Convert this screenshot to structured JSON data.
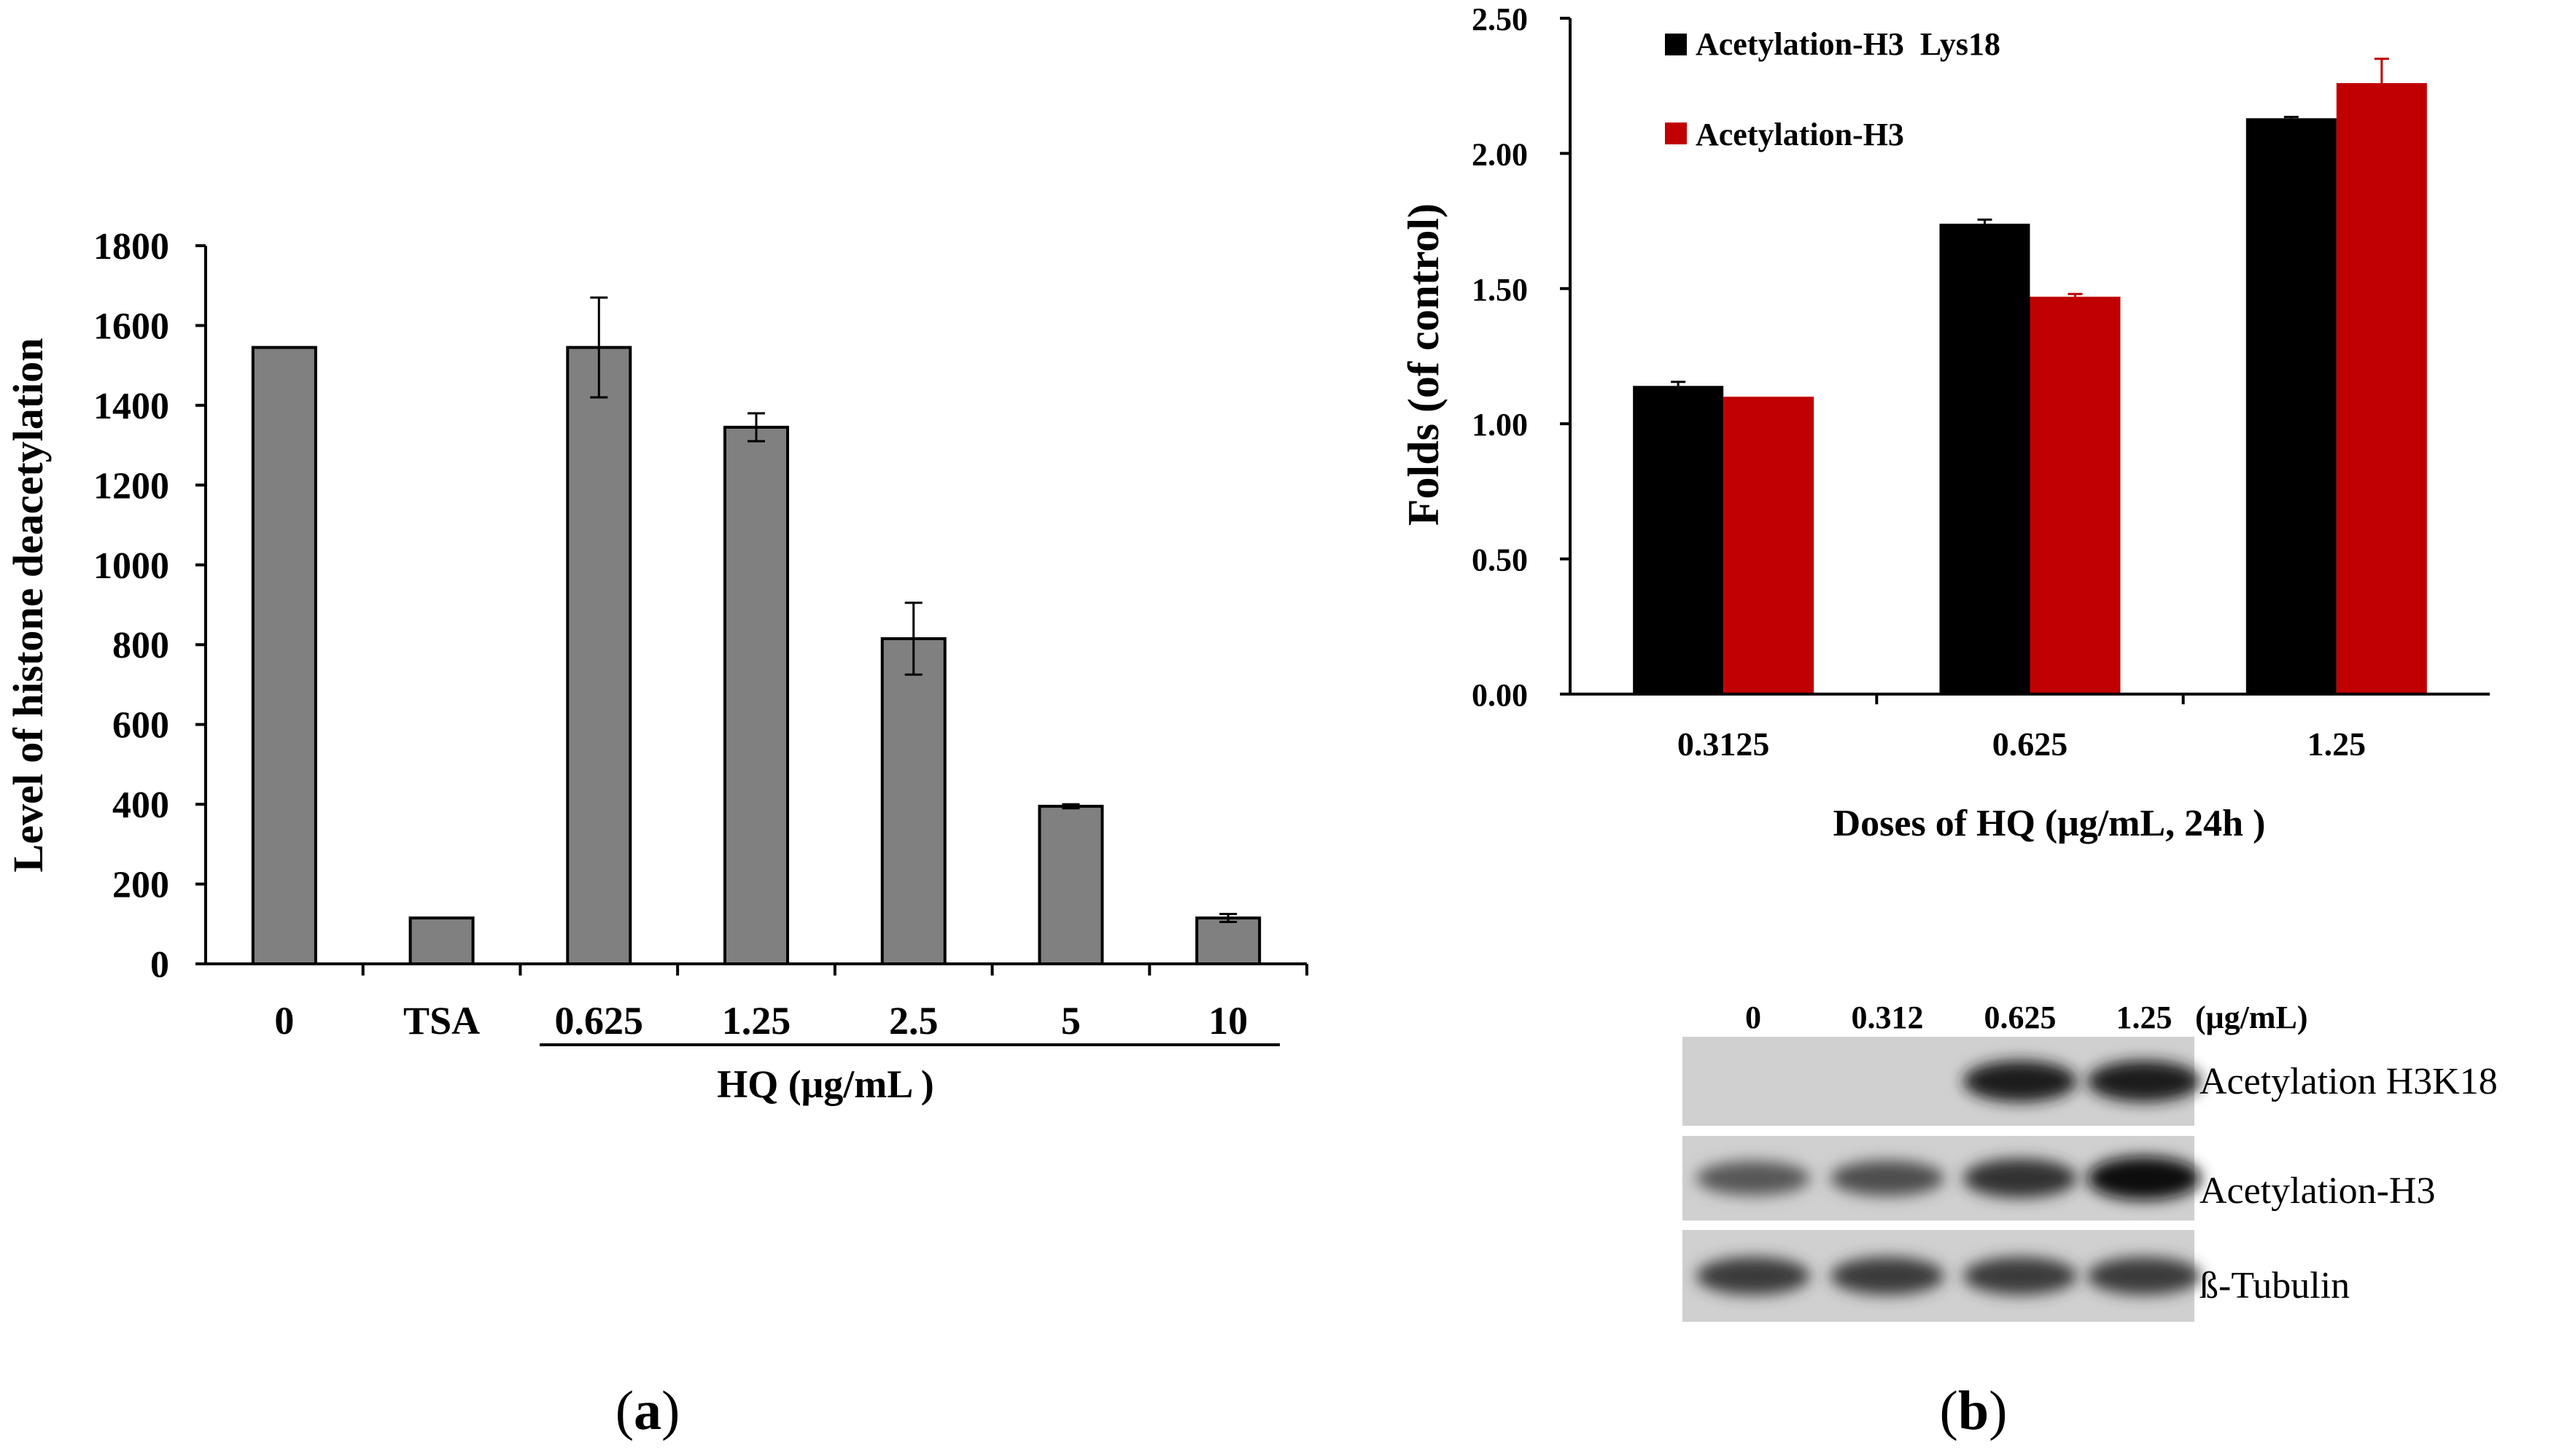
{
  "chart_data": [
    {
      "type": "bar",
      "panel_label": "a",
      "title": "",
      "ylabel": "Level of histone deacetylation",
      "xlabel": "HQ (μg/mL )",
      "ylim": [
        0,
        1800
      ],
      "yticks": [
        "0",
        "200",
        "400",
        "600",
        "800",
        "1000",
        "1200",
        "1400",
        "1600",
        "1800"
      ],
      "categories": [
        "0",
        "TSA",
        "0.625",
        "1.25",
        "2.5",
        "5",
        "10"
      ],
      "values": [
        1545,
        115,
        1545,
        1345,
        815,
        395,
        115
      ],
      "errors": [
        0,
        0,
        125,
        35,
        90,
        5,
        10
      ],
      "bar_color": "#808080"
    },
    {
      "type": "bar",
      "panel_label": "b",
      "title": "",
      "ylabel": "Folds (of control)",
      "xlabel": "Doses of  HQ (μg/mL, 24h )",
      "ylim": [
        0,
        2.5
      ],
      "yticks": [
        "0.00",
        "0.50",
        "1.00",
        "1.50",
        "2.00",
        "2.50"
      ],
      "categories": [
        "0.3125",
        "0.625",
        "1.25"
      ],
      "series": [
        {
          "name": "Acetylation-H3  Lys18",
          "color": "#000000",
          "values": [
            1.14,
            1.74,
            2.13
          ],
          "errors": [
            0.015,
            0.015,
            0.005
          ]
        },
        {
          "name": "Acetylation-H3",
          "color": "#c00000",
          "values": [
            1.1,
            1.47,
            2.26
          ],
          "errors": [
            0.0,
            0.01,
            0.09
          ]
        }
      ]
    }
  ],
  "western_blot": {
    "lane_labels": [
      "0",
      "0.312",
      "0.625",
      "1.25"
    ],
    "unit": "(μg/mL)",
    "rows": [
      {
        "label": "Acetylation H3K18",
        "intensities": [
          0,
          0,
          0.9,
          0.9
        ]
      },
      {
        "label": "Acetylation-H3",
        "intensities": [
          0.6,
          0.65,
          0.8,
          1.0
        ]
      },
      {
        "label": "ß-Tubulin",
        "intensities": [
          0.75,
          0.75,
          0.75,
          0.75
        ]
      }
    ]
  },
  "panel_labels": {
    "a": "a",
    "b": "b"
  }
}
